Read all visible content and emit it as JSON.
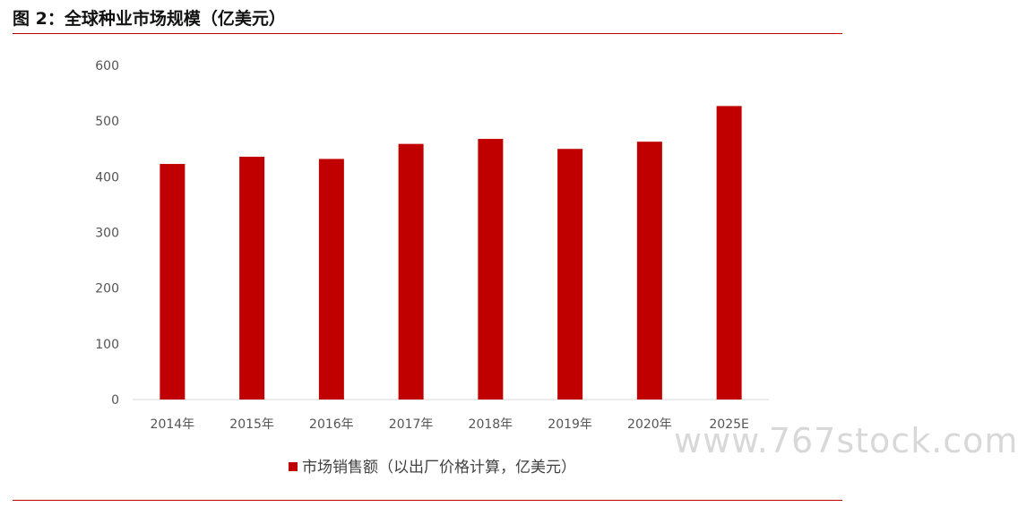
{
  "figure_title": "图 2：全球种业市场规模（亿美元）",
  "watermark": "www.767stock.com",
  "colors": {
    "bar": "#c00000",
    "rule": "#c00000",
    "axis": "#d9d9d9"
  },
  "chart_data": {
    "type": "bar",
    "categories": [
      "2014年",
      "2015年",
      "2016年",
      "2017年",
      "2018年",
      "2019年",
      "2020年",
      "2025E"
    ],
    "series": [
      {
        "name": "市场销售额（以出厂价格计算，亿美元）",
        "values": [
          423,
          436,
          432,
          459,
          468,
          450,
          463,
          527
        ]
      }
    ],
    "ylim": [
      0,
      600
    ],
    "yticks": [
      0,
      100,
      200,
      300,
      400,
      500,
      600
    ],
    "grid": false,
    "legend": "bottom"
  }
}
